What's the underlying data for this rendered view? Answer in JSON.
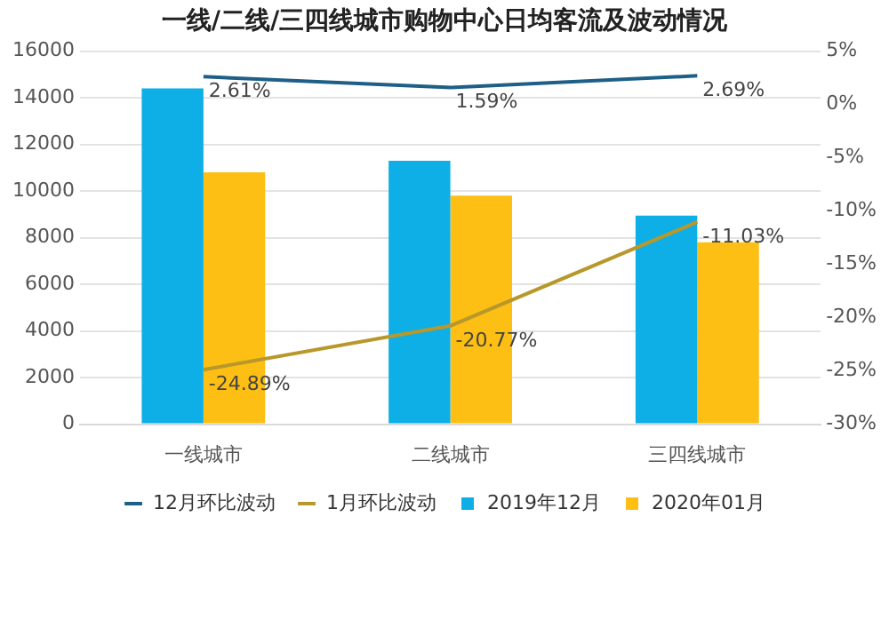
{
  "chart_data": {
    "type": "bar",
    "title": "一线/二线/三四线城市购物中心日均客流及波动情况",
    "categories": [
      "一线城市",
      "二线城市",
      "三四线城市"
    ],
    "series": [
      {
        "name": "2019年12月",
        "color": "#0eaee6",
        "values": [
          14400,
          11300,
          8950
        ]
      },
      {
        "name": "2020年01月",
        "color": "#fdbf13",
        "values": [
          10800,
          9800,
          7800
        ]
      },
      {
        "name": "12月环比波动",
        "color": "#1d5f86",
        "type": "line",
        "axis": "y2",
        "values": [
          2.61,
          1.59,
          2.69
        ],
        "value_labels": [
          "2.61%",
          "1.59%",
          "2.69%"
        ]
      },
      {
        "name": "1月环比波动",
        "color": "#b8982a",
        "type": "line",
        "axis": "y2",
        "values": [
          -24.89,
          -20.77,
          -11.03
        ],
        "value_labels": [
          "-24.89%",
          "-20.77%",
          "-11.03%"
        ]
      }
    ],
    "ylim": [
      0,
      16000
    ],
    "yticks": [
      0,
      2000,
      4000,
      6000,
      8000,
      10000,
      12000,
      14000,
      16000
    ],
    "y2lim": [
      -30,
      5
    ],
    "y2ticks": [
      {
        "value": -30,
        "label": "-30%"
      },
      {
        "value": -25,
        "label": "-25%"
      },
      {
        "value": -20,
        "label": "-20%"
      },
      {
        "value": -15,
        "label": "-15%"
      },
      {
        "value": -10,
        "label": "-10%"
      },
      {
        "value": -5,
        "label": "-5%"
      },
      {
        "value": 0,
        "label": "0%"
      },
      {
        "value": 5,
        "label": "5%"
      }
    ],
    "grid": "y",
    "legend": "bottom",
    "marker": "none",
    "line_style": "solid"
  }
}
